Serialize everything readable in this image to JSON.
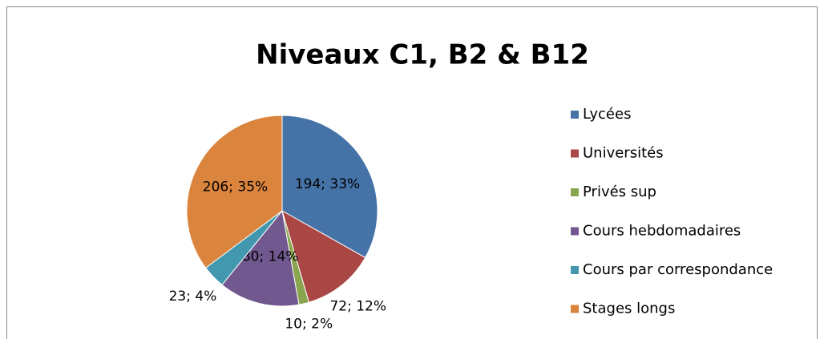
{
  "chart_data": {
    "type": "pie",
    "title": "Niveaux C1, B2 & B12",
    "categories": [
      "Lycées",
      "Universités",
      "Privés sup",
      "Cours hebdomadaires",
      "Cours par correspondance",
      "Stages longs"
    ],
    "values": [
      194,
      72,
      10,
      80,
      23,
      206
    ],
    "value_labels": [
      "194; 33%",
      "72; 12%",
      "10; 2%",
      "80; 14%",
      "23; 4%",
      "206; 35%"
    ],
    "colors": [
      "#4572a7",
      "#aa4643",
      "#89a54e",
      "#71588f",
      "#4198af",
      "#db843d"
    ],
    "legend": "right"
  }
}
